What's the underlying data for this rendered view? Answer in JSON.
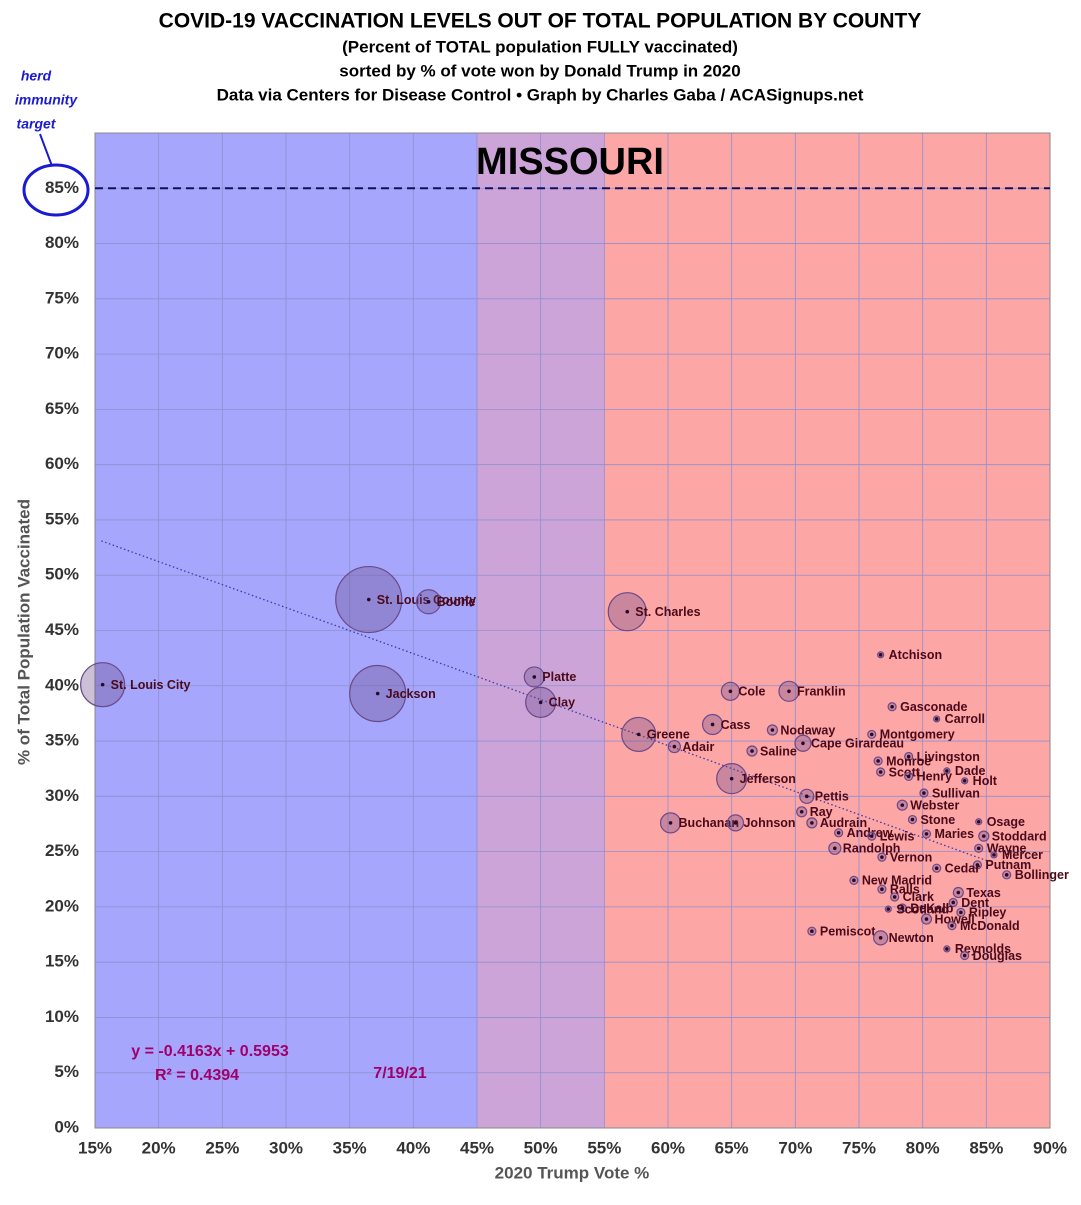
{
  "chart_data": {
    "type": "scatter",
    "title": "COVID-19 VACCINATION LEVELS OUT OF TOTAL POPULATION BY COUNTY",
    "subtitles": [
      "(Percent of TOTAL population FULLY vaccinated)",
      "sorted by % of vote won by Donald Trump in 2020",
      "Data via Centers for Disease Control • Graph by Charles Gaba / ACASignups.net"
    ],
    "state": "MISSOURI",
    "x_label": "2020 Trump Vote %",
    "y_label": "% of Total Population Vaccinated",
    "xlim": [
      15,
      90
    ],
    "ylim": [
      0,
      90
    ],
    "xticks": [
      {
        "value": 15,
        "label": "15%"
      },
      {
        "value": 20,
        "label": "20%"
      },
      {
        "value": 25,
        "label": "25%"
      },
      {
        "value": 30,
        "label": "30%"
      },
      {
        "value": 35,
        "label": "35%"
      },
      {
        "value": 40,
        "label": "40%"
      },
      {
        "value": 45,
        "label": "45%"
      },
      {
        "value": 50,
        "label": "50%"
      },
      {
        "value": 55,
        "label": "55%"
      },
      {
        "value": 60,
        "label": "60%"
      },
      {
        "value": 65,
        "label": "65%"
      },
      {
        "value": 70,
        "label": "70%"
      },
      {
        "value": 75,
        "label": "75%"
      },
      {
        "value": 80,
        "label": "80%"
      },
      {
        "value": 85,
        "label": "85%"
      },
      {
        "value": 90,
        "label": "90%"
      }
    ],
    "yticks": [
      {
        "value": 0,
        "label": "0%"
      },
      {
        "value": 5,
        "label": "5%"
      },
      {
        "value": 10,
        "label": "10%"
      },
      {
        "value": 15,
        "label": "15%"
      },
      {
        "value": 20,
        "label": "20%"
      },
      {
        "value": 25,
        "label": "25%"
      },
      {
        "value": 30,
        "label": "30%"
      },
      {
        "value": 35,
        "label": "35%"
      },
      {
        "value": 40,
        "label": "40%"
      },
      {
        "value": 45,
        "label": "45%"
      },
      {
        "value": 50,
        "label": "50%"
      },
      {
        "value": 55,
        "label": "55%"
      },
      {
        "value": 60,
        "label": "60%"
      },
      {
        "value": 65,
        "label": "65%"
      },
      {
        "value": 70,
        "label": "70%"
      },
      {
        "value": 75,
        "label": "75%"
      },
      {
        "value": 80,
        "label": "80%"
      },
      {
        "value": 85,
        "label": "85%"
      }
    ],
    "grid": true,
    "bands": [
      {
        "from": 15,
        "to": 45,
        "color": "#a6a6fc"
      },
      {
        "from": 45,
        "to": 55,
        "color": "#cda4d8"
      },
      {
        "from": 55,
        "to": 90,
        "color": "#fca6a6"
      }
    ],
    "reference_line": {
      "value": 85,
      "color": "#101060",
      "label": [
        "herd",
        "immunity",
        "target"
      ],
      "label_color": "#1a1ad0"
    },
    "trendline": {
      "x": [
        15.5,
        85
      ],
      "y": [
        53.1,
        24.2
      ],
      "color": "#3a3ab0",
      "equation": "y = -0.4163x + 0.5953",
      "r2": "R² = 0.4394"
    },
    "date": "7/19/21",
    "annotation_color": "#a0006a",
    "series": [
      {
        "color": "#6a4a8a",
        "labels": [
          "St. Louis City",
          "St. Louis County",
          "Boone",
          "Jackson",
          "Platte",
          "Clay",
          "St. Charles",
          "Greene",
          "Cass",
          "Adair",
          "Cole",
          "Franklin",
          "Jefferson",
          "Buchanan",
          "Johnson",
          "Nodaway",
          "Cape Girardeau",
          "Saline",
          "Pettis",
          "Ray",
          "Audrain",
          "Andrew",
          "Randolph",
          "Pemiscot",
          "Newton",
          "New Madrid",
          "Atchison",
          "Gasconade",
          "Carroll",
          "Montgomery",
          "Livingston",
          "Dade",
          "Holt",
          "Sullivan",
          "Webster",
          "Stone",
          "Osage",
          "Stoddard",
          "Maries",
          "Wayne",
          "Mercer",
          "Putnam",
          "Bollinger",
          "Cedar",
          "Texas",
          "Dent",
          "Ripley",
          "Howell",
          "McDonald",
          "Reynolds",
          "Douglas",
          "Clark",
          "DeKalb",
          "Scotland",
          "Ralls",
          "Lewis",
          "Vernon",
          "Monroe",
          "Scott",
          "Henry"
        ],
        "x": [
          15.6,
          36.5,
          41.2,
          37.2,
          49.5,
          50.0,
          56.8,
          57.7,
          63.5,
          60.5,
          64.9,
          69.5,
          65.0,
          60.2,
          65.3,
          68.2,
          70.6,
          66.6,
          70.9,
          70.5,
          71.3,
          73.4,
          73.1,
          71.3,
          76.7,
          74.6,
          76.7,
          77.6,
          81.1,
          76.0,
          78.9,
          81.9,
          83.3,
          80.1,
          78.4,
          79.2,
          84.4,
          84.8,
          80.3,
          84.4,
          85.6,
          84.3,
          86.6,
          81.1,
          82.8,
          82.4,
          83.0,
          80.3,
          82.3,
          81.9,
          83.3,
          77.8,
          78.4,
          77.3,
          76.8,
          76.0,
          76.8,
          76.5,
          76.7,
          78.9
        ],
        "values": [
          40.1,
          47.8,
          47.6,
          39.3,
          40.8,
          38.5,
          46.7,
          35.6,
          36.5,
          34.5,
          39.5,
          39.5,
          31.6,
          27.6,
          27.6,
          36.0,
          34.8,
          34.1,
          30.0,
          28.6,
          27.6,
          26.7,
          25.3,
          17.8,
          17.2,
          22.4,
          42.8,
          38.1,
          37.0,
          35.6,
          33.6,
          32.3,
          31.4,
          30.3,
          29.2,
          27.9,
          27.7,
          26.4,
          26.6,
          25.3,
          24.7,
          23.8,
          22.9,
          23.5,
          21.3,
          20.4,
          19.5,
          18.9,
          18.3,
          16.2,
          15.6,
          20.9,
          19.9,
          19.8,
          21.6,
          26.4,
          24.5,
          33.2,
          32.2,
          31.8
        ],
        "sizes": [
          22,
          33,
          12,
          28,
          10,
          15,
          19,
          17,
          10,
          6,
          9,
          10,
          15,
          10,
          8,
          5,
          8,
          5,
          7,
          5,
          5,
          4,
          6,
          4,
          7,
          4,
          3,
          4,
          3,
          4,
          4,
          3,
          3,
          4,
          5,
          4,
          3,
          5,
          4,
          4,
          3,
          4,
          4,
          4,
          5,
          4,
          4,
          5,
          4,
          3,
          4,
          4,
          4,
          3,
          4,
          4,
          4,
          4,
          4,
          4
        ]
      }
    ]
  }
}
